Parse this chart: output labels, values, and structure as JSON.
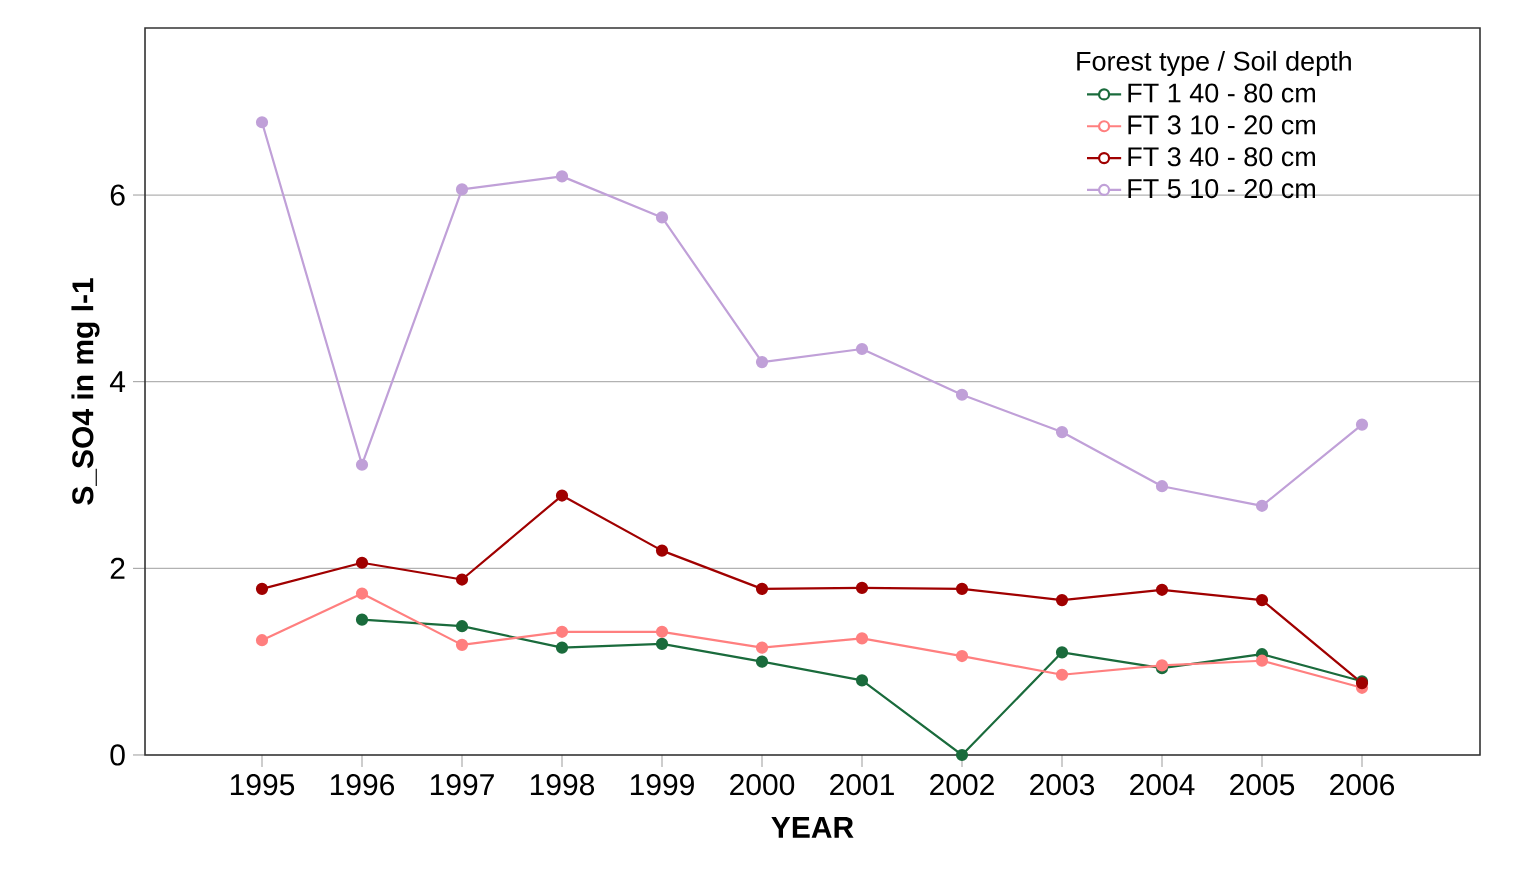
{
  "chart_data": {
    "type": "line",
    "xlabel": "YEAR",
    "ylabel": "S_SO4 in mg l-1",
    "legend_title": "Forest type / Soil depth",
    "x": [
      1995,
      1996,
      1997,
      1998,
      1999,
      2000,
      2001,
      2002,
      2003,
      2004,
      2005,
      2006
    ],
    "series": [
      {
        "name": "FT 1 40 - 80 cm",
        "color": "#1a6b3c",
        "values": [
          null,
          1.45,
          1.38,
          1.15,
          1.19,
          1.0,
          0.8,
          0,
          1.1,
          0.93,
          1.08,
          0.79
        ]
      },
      {
        "name": "FT 3 10 - 20 cm",
        "color": "#ff7f7f",
        "values": [
          1.23,
          1.73,
          1.18,
          1.32,
          1.32,
          1.15,
          1.25,
          1.06,
          0.86,
          0.96,
          1.01,
          0.72
        ]
      },
      {
        "name": "FT 3 40 - 80 cm",
        "color": "#a00000",
        "values": [
          1.78,
          2.06,
          1.88,
          2.78,
          2.19,
          1.78,
          1.79,
          1.78,
          1.66,
          1.77,
          1.66,
          0.77
        ]
      },
      {
        "name": "FT 5 10 - 20 cm",
        "color": "#c0a0d8",
        "values": [
          6.78,
          3.11,
          6.06,
          6.2,
          5.76,
          4.21,
          4.35,
          3.86,
          3.46,
          2.88,
          2.67,
          3.54
        ]
      }
    ],
    "xlim": [
      1993.83,
      2007.18
    ],
    "ylim": [
      0,
      7.79
    ],
    "xticks": [
      1995,
      1996,
      1997,
      1998,
      1999,
      2000,
      2001,
      2002,
      2003,
      2004,
      2005,
      2006
    ],
    "yticks": [
      0,
      2,
      4,
      6
    ],
    "grid": "y",
    "legend": "top right",
    "marker": "circle",
    "line_style": "solid"
  }
}
